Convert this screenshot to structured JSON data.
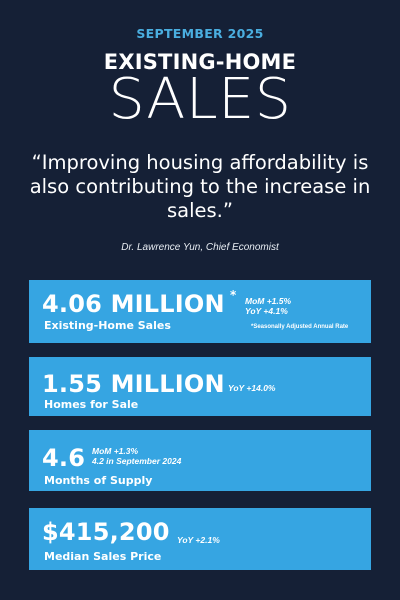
{
  "header": {
    "eyebrow": "SEPTEMBER 2025",
    "headline": "EXISTING-HOME",
    "subheadline": "SALES"
  },
  "quote": {
    "text": "“Improving housing affordability is also contributing to the increase in sales.”",
    "attribution": "Dr. Lawrence Yun, Chief Economist"
  },
  "colors": {
    "background": "#152036",
    "accent": "#4aaee0",
    "card": "#36a5e2",
    "text": "#ffffff"
  },
  "stats": [
    {
      "value": "4.06 MILLION",
      "asterisk": "*",
      "mom": "MoM +1.5%",
      "yoy": "YoY +4.1%",
      "label": "Existing-Home Sales",
      "footnote": "*Seasonally Adjusted Annual Rate"
    },
    {
      "value": "1.55 MILLION",
      "change": "YoY +14.0%",
      "label": "Homes for Sale"
    },
    {
      "value": "4.6",
      "change": "MoM +1.3%",
      "change2": "4.2 in September 2024",
      "label": "Months of Supply"
    },
    {
      "value": "$415,200",
      "change": "YoY +2.1%",
      "label": "Median Sales Price"
    }
  ]
}
